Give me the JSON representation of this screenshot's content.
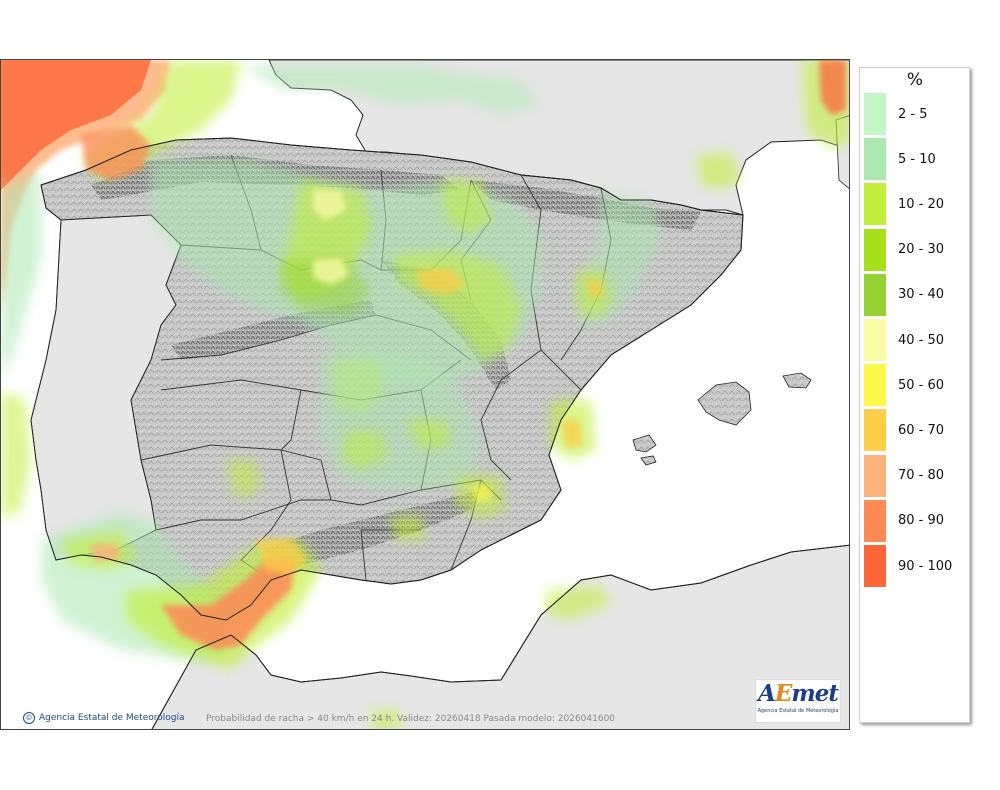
{
  "map": {
    "caption": "Probabilidad de racha > 40 km/h en 24 h. Validez: 20260418 Pasada modelo: 2026041600",
    "credit": "Agencia Estatal de Meteorología",
    "logo": {
      "wordmark": "AEmet",
      "subtitle": "Agencia Estatal de Meteorología"
    },
    "colors": {
      "sea": "#ffffff",
      "land_background": "#e6e6e6",
      "terrain": "#c8c8c8",
      "borders": "#222222"
    }
  },
  "legend": {
    "unit": "%",
    "items": [
      {
        "label": "2 - 5",
        "color": "#c4f7c6"
      },
      {
        "label": "5 - 10",
        "color": "#ace8b1"
      },
      {
        "label": "10 - 20",
        "color": "#c2ef3c"
      },
      {
        "label": "20 - 30",
        "color": "#a6e019"
      },
      {
        "label": "30 - 40",
        "color": "#94d133"
      },
      {
        "label": "40 - 50",
        "color": "#fcfba5"
      },
      {
        "label": "50 - 60",
        "color": "#fcf84a"
      },
      {
        "label": "60 - 70",
        "color": "#fbcf49"
      },
      {
        "label": "70 - 80",
        "color": "#fdb17a"
      },
      {
        "label": "80 - 90",
        "color": "#fd8955"
      },
      {
        "label": "90 - 100",
        "color": "#fd6637"
      }
    ]
  }
}
